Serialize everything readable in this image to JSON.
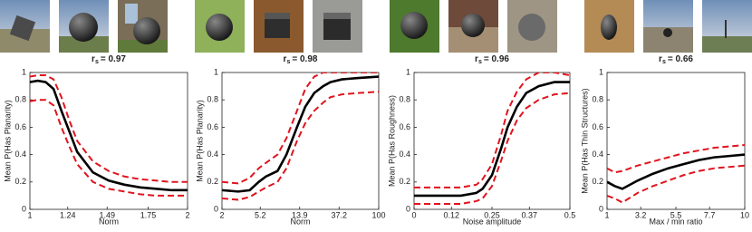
{
  "chart_data": [
    {
      "type": "line",
      "annotation": [
        "r",
        "s",
        "= 0.97"
      ],
      "xlabel": "Norm",
      "ylabel": "Mean P(Has Planarity)",
      "xlim": [
        1,
        2
      ],
      "xticks": [
        1,
        1.24,
        1.49,
        1.75,
        2
      ],
      "ylim": [
        0,
        1
      ],
      "yticks": [
        0,
        0.2,
        0.4,
        0.6,
        0.8,
        1
      ],
      "log_x": false,
      "x": [
        1,
        1.05,
        1.1,
        1.15,
        1.2,
        1.25,
        1.3,
        1.4,
        1.5,
        1.6,
        1.7,
        1.8,
        1.9,
        2
      ],
      "series": [
        {
          "color": "#000000",
          "dashed": false,
          "values": [
            0.93,
            0.94,
            0.93,
            0.88,
            0.72,
            0.57,
            0.42,
            0.27,
            0.21,
            0.18,
            0.16,
            0.15,
            0.14,
            0.14
          ]
        },
        {
          "color": "#e0141e",
          "dashed": true,
          "values": [
            0.97,
            0.98,
            0.98,
            0.95,
            0.82,
            0.65,
            0.5,
            0.35,
            0.28,
            0.24,
            0.22,
            0.21,
            0.2,
            0.2
          ]
        },
        {
          "color": "#e0141e",
          "dashed": true,
          "values": [
            0.79,
            0.8,
            0.8,
            0.76,
            0.6,
            0.46,
            0.33,
            0.2,
            0.15,
            0.13,
            0.11,
            0.1,
            0.1,
            0.1
          ]
        }
      ]
    },
    {
      "type": "line",
      "annotation": [
        "r",
        "s",
        "= 0.98"
      ],
      "xlabel": "Norm",
      "ylabel": "Mean P(Has Planarity)",
      "xlim": [
        2,
        100
      ],
      "xticks": [
        2,
        5.2,
        13.9,
        37.2,
        100
      ],
      "ylim": [
        0,
        1
      ],
      "yticks": [
        0,
        0.2,
        0.4,
        0.6,
        0.8,
        1
      ],
      "log_x": true,
      "x": [
        2,
        3,
        4,
        5,
        6,
        8,
        10,
        13,
        16,
        20,
        25,
        30,
        40,
        60,
        100
      ],
      "series": [
        {
          "color": "#000000",
          "dashed": false,
          "values": [
            0.14,
            0.13,
            0.14,
            0.2,
            0.24,
            0.28,
            0.4,
            0.6,
            0.75,
            0.85,
            0.9,
            0.93,
            0.95,
            0.96,
            0.97
          ]
        },
        {
          "color": "#e0141e",
          "dashed": true,
          "values": [
            0.2,
            0.19,
            0.23,
            0.3,
            0.34,
            0.4,
            0.52,
            0.72,
            0.88,
            0.97,
            1.0,
            1.0,
            1.0,
            1.0,
            1.0
          ]
        },
        {
          "color": "#e0141e",
          "dashed": true,
          "values": [
            0.08,
            0.07,
            0.09,
            0.13,
            0.16,
            0.2,
            0.3,
            0.5,
            0.63,
            0.72,
            0.78,
            0.82,
            0.84,
            0.85,
            0.86
          ]
        }
      ]
    },
    {
      "type": "line",
      "annotation": [
        "r",
        "s",
        "= 0.96"
      ],
      "xlabel": "Noise amplitude",
      "ylabel": "Mean P(Has Roughness)",
      "xlim": [
        0,
        0.5
      ],
      "xticks": [
        0,
        0.12,
        0.25,
        0.37,
        0.5
      ],
      "ylim": [
        0,
        1
      ],
      "yticks": [
        0,
        0.2,
        0.4,
        0.6,
        0.8,
        1
      ],
      "log_x": false,
      "x": [
        0,
        0.05,
        0.1,
        0.15,
        0.2,
        0.22,
        0.25,
        0.28,
        0.3,
        0.33,
        0.36,
        0.4,
        0.45,
        0.5
      ],
      "series": [
        {
          "color": "#000000",
          "dashed": false,
          "values": [
            0.1,
            0.1,
            0.1,
            0.1,
            0.12,
            0.15,
            0.25,
            0.45,
            0.6,
            0.75,
            0.85,
            0.9,
            0.93,
            0.93
          ]
        },
        {
          "color": "#e0141e",
          "dashed": true,
          "values": [
            0.16,
            0.16,
            0.16,
            0.16,
            0.18,
            0.22,
            0.33,
            0.55,
            0.72,
            0.86,
            0.95,
            1.0,
            1.0,
            0.98
          ]
        },
        {
          "color": "#e0141e",
          "dashed": true,
          "values": [
            0.04,
            0.04,
            0.04,
            0.04,
            0.06,
            0.08,
            0.17,
            0.36,
            0.5,
            0.65,
            0.74,
            0.8,
            0.84,
            0.85
          ]
        }
      ]
    },
    {
      "type": "line",
      "annotation": [
        "r",
        "s",
        "= 0.66"
      ],
      "xlabel": "Max / min ratio",
      "ylabel": "Mean P(Has Thin Structures)",
      "xlim": [
        1,
        10
      ],
      "xticks": [
        1,
        3.2,
        5.5,
        7.7,
        10
      ],
      "ylim": [
        0,
        1
      ],
      "yticks": [
        0,
        0.2,
        0.4,
        0.6,
        0.8,
        1
      ],
      "log_x": false,
      "x": [
        1,
        1.5,
        2,
        3,
        4,
        5,
        6,
        7,
        8,
        9,
        10
      ],
      "series": [
        {
          "color": "#000000",
          "dashed": false,
          "values": [
            0.2,
            0.17,
            0.15,
            0.21,
            0.26,
            0.3,
            0.33,
            0.36,
            0.38,
            0.39,
            0.4
          ]
        },
        {
          "color": "#e0141e",
          "dashed": true,
          "values": [
            0.3,
            0.27,
            0.28,
            0.32,
            0.35,
            0.38,
            0.41,
            0.43,
            0.45,
            0.46,
            0.47
          ]
        },
        {
          "color": "#e0141e",
          "dashed": true,
          "values": [
            0.1,
            0.08,
            0.05,
            0.12,
            0.17,
            0.21,
            0.25,
            0.28,
            0.3,
            0.31,
            0.32
          ]
        }
      ]
    }
  ]
}
